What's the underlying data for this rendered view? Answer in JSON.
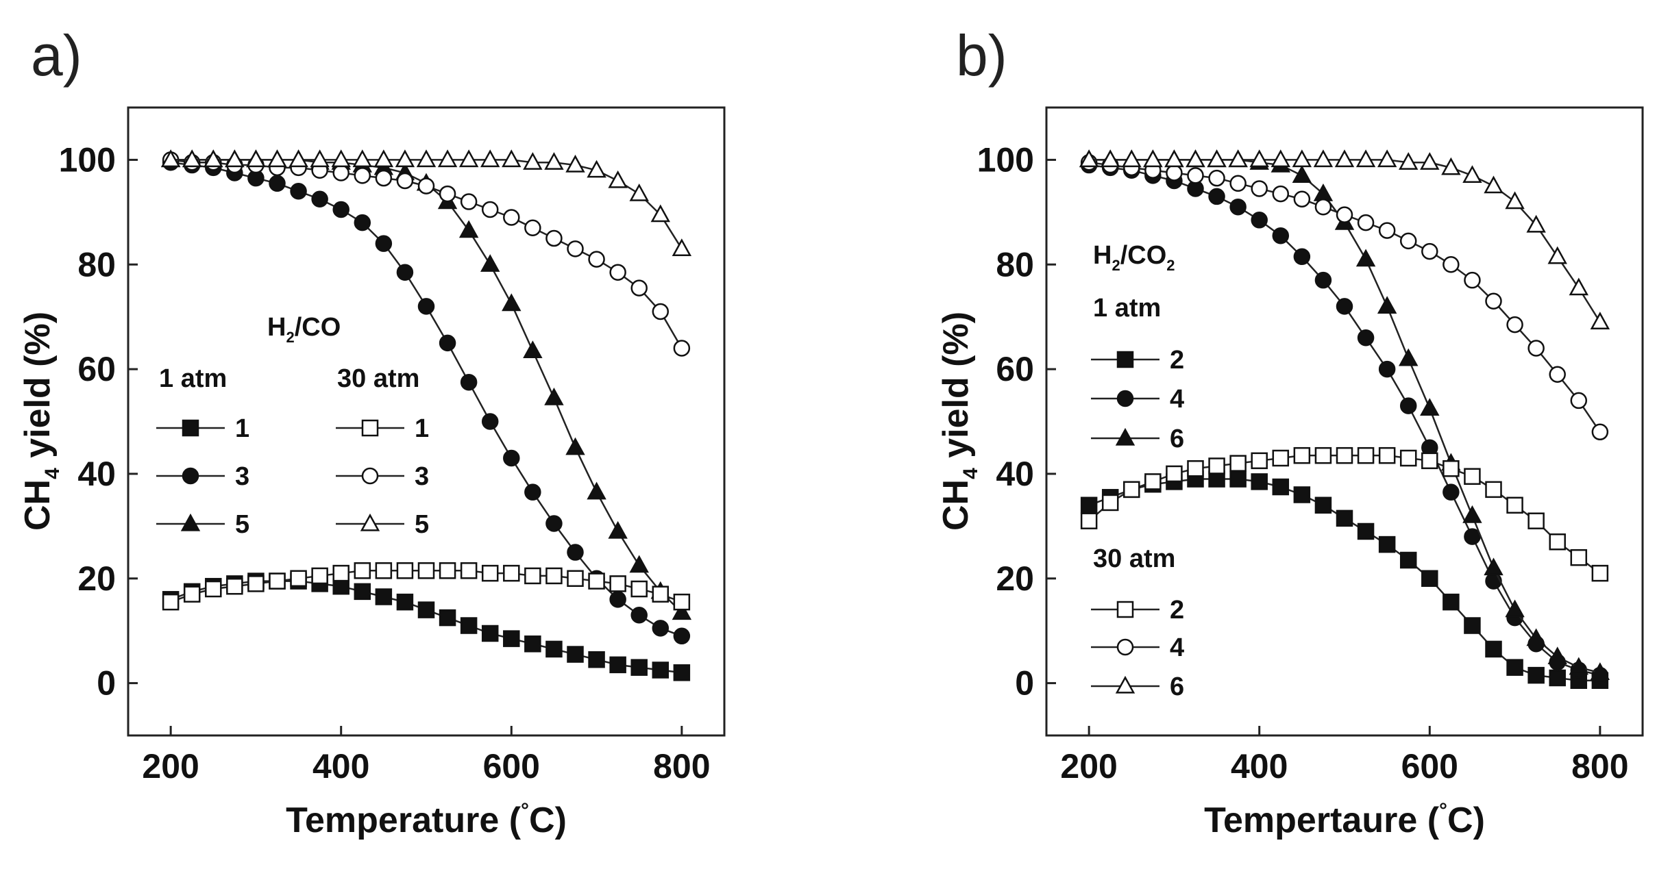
{
  "chart_data": [
    {
      "panel_label": "a)",
      "type": "line",
      "xlabel_main": "Temperature (",
      "xlabel_deg": "°",
      "xlabel_end": "C)",
      "ylabel_main": "CH",
      "ylabel_sub": "4",
      "ylabel_end": " yield (%)",
      "xlim": [
        150,
        850
      ],
      "ylim": [
        -10,
        110
      ],
      "xticks": [
        200,
        400,
        600,
        800
      ],
      "yticks": [
        0,
        20,
        40,
        60,
        80,
        100
      ],
      "x": [
        200,
        225,
        250,
        275,
        300,
        325,
        350,
        375,
        400,
        425,
        450,
        475,
        500,
        525,
        550,
        575,
        600,
        625,
        650,
        675,
        700,
        725,
        750,
        775,
        800
      ],
      "legend": {
        "title_main": "H",
        "title_sub": "2",
        "title_end": "/CO",
        "group1_header": "1 atm",
        "group2_header": "30 atm",
        "entries1": [
          "1",
          "3",
          "5"
        ],
        "entries2": [
          "1",
          "3",
          "5"
        ]
      },
      "series": [
        {
          "name": "1 atm, H2/CO = 1",
          "marker": "square",
          "filled": true,
          "values": [
            16,
            17.5,
            18.5,
            19,
            19.5,
            19.5,
            19.5,
            19,
            18.5,
            17.5,
            16.5,
            15.5,
            14,
            12.5,
            11,
            9.5,
            8.5,
            7.5,
            6.5,
            5.5,
            4.5,
            3.5,
            3,
            2.5,
            2
          ]
        },
        {
          "name": "1 atm, H2/CO = 3",
          "marker": "circle",
          "filled": true,
          "values": [
            99.5,
            99,
            98.5,
            97.5,
            96.5,
            95.5,
            94,
            92.5,
            90.5,
            88,
            84,
            78.5,
            72,
            65,
            57.5,
            50,
            43,
            36.5,
            30.5,
            25,
            20,
            16,
            13,
            10.5,
            9
          ]
        },
        {
          "name": "1 atm, H2/CO = 5",
          "marker": "triangle",
          "filled": true,
          "values": [
            100,
            100,
            100,
            100,
            100,
            100,
            100,
            99.5,
            99.5,
            99,
            98.5,
            97.5,
            95.5,
            92,
            86.5,
            80,
            72.5,
            63.5,
            54.5,
            45,
            36.5,
            29,
            22.5,
            17.5,
            13.5
          ]
        },
        {
          "name": "30 atm, H2/CO = 1",
          "marker": "square",
          "filled": false,
          "values": [
            15.5,
            17,
            18,
            18.5,
            19,
            19.5,
            20,
            20.5,
            21,
            21.5,
            21.5,
            21.5,
            21.5,
            21.5,
            21.5,
            21,
            21,
            20.5,
            20.5,
            20,
            19.5,
            19,
            18,
            17,
            15.5
          ]
        },
        {
          "name": "30 atm, H2/CO = 3",
          "marker": "circle",
          "filled": false,
          "values": [
            100,
            99.5,
            99.5,
            99,
            99,
            98.5,
            98.5,
            98,
            97.5,
            97,
            96.5,
            96,
            95,
            93.5,
            92,
            90.5,
            89,
            87,
            85,
            83,
            81,
            78.5,
            75.5,
            71,
            64
          ]
        },
        {
          "name": "30 atm, H2/CO = 5",
          "marker": "triangle",
          "filled": false,
          "values": [
            100,
            100,
            100,
            100,
            100,
            100,
            100,
            100,
            100,
            100,
            100,
            100,
            100,
            100,
            100,
            100,
            100,
            99.5,
            99.5,
            99,
            98,
            96,
            93.5,
            89.5,
            83
          ]
        }
      ]
    },
    {
      "panel_label": "b)",
      "type": "line",
      "xlabel_main": "Tempertaure (",
      "xlabel_deg": "°",
      "xlabel_end": "C)",
      "ylabel_main": "CH",
      "ylabel_sub": "4",
      "ylabel_end": " yield (%)",
      "xlim": [
        150,
        850
      ],
      "ylim": [
        -10,
        110
      ],
      "xticks": [
        200,
        400,
        600,
        800
      ],
      "yticks": [
        0,
        20,
        40,
        60,
        80,
        100
      ],
      "x": [
        200,
        225,
        250,
        275,
        300,
        325,
        350,
        375,
        400,
        425,
        450,
        475,
        500,
        525,
        550,
        575,
        600,
        625,
        650,
        675,
        700,
        725,
        750,
        775,
        800
      ],
      "legend": {
        "title_main": "H",
        "title_sub": "2",
        "title_mid": "/CO",
        "title_sub2": "2",
        "group1_header": "1 atm",
        "group2_header": "30 atm",
        "entries1": [
          "2",
          "4",
          "6"
        ],
        "entries2": [
          "2",
          "4",
          "6"
        ]
      },
      "series": [
        {
          "name": "1 atm, H2/CO2 = 2",
          "marker": "square",
          "filled": true,
          "values": [
            34,
            35.5,
            37,
            38,
            38.5,
            39,
            39,
            39,
            38.5,
            37.5,
            36,
            34,
            31.5,
            29,
            26.5,
            23.5,
            20,
            15.5,
            11,
            6.5,
            3,
            1.5,
            1,
            0.5,
            0.5
          ]
        },
        {
          "name": "1 atm, H2/CO2 = 4",
          "marker": "circle",
          "filled": true,
          "values": [
            99,
            98.5,
            98,
            97,
            96,
            94.5,
            93,
            91,
            88.5,
            85.5,
            81.5,
            77,
            72,
            66,
            60,
            53,
            45,
            36.5,
            28,
            19.5,
            12.5,
            7.5,
            4,
            2.5,
            1.5
          ]
        },
        {
          "name": "1 atm, H2/CO2 = 6",
          "marker": "triangle",
          "filled": true,
          "values": [
            100,
            100,
            100,
            100,
            100,
            100,
            100,
            100,
            99.5,
            99,
            97,
            93.5,
            88,
            81,
            72,
            62,
            52.5,
            42,
            32,
            22,
            14,
            8.5,
            5,
            3,
            2
          ]
        },
        {
          "name": "30 atm, H2/CO2 = 2",
          "marker": "square",
          "filled": false,
          "values": [
            31,
            34.5,
            37,
            38.5,
            40,
            41,
            41.5,
            42,
            42.5,
            43,
            43.5,
            43.5,
            43.5,
            43.5,
            43.5,
            43,
            42.5,
            41,
            39.5,
            37,
            34,
            31,
            27,
            24,
            21
          ]
        },
        {
          "name": "30 atm, H2/CO2 = 4",
          "marker": "circle",
          "filled": false,
          "values": [
            99.5,
            99,
            98.5,
            98,
            97.5,
            97,
            96.5,
            95.5,
            94.5,
            93.5,
            92.5,
            91,
            89.5,
            88,
            86.5,
            84.5,
            82.5,
            80,
            77,
            73,
            68.5,
            64,
            59,
            54,
            48
          ]
        },
        {
          "name": "30 atm, H2/CO2 = 6",
          "marker": "triangle",
          "filled": false,
          "values": [
            100,
            100,
            100,
            100,
            100,
            100,
            100,
            100,
            100,
            100,
            100,
            100,
            100,
            100,
            100,
            99.5,
            99.5,
            98.5,
            97,
            95,
            92,
            87.5,
            81.5,
            75.5,
            69
          ]
        }
      ]
    }
  ]
}
